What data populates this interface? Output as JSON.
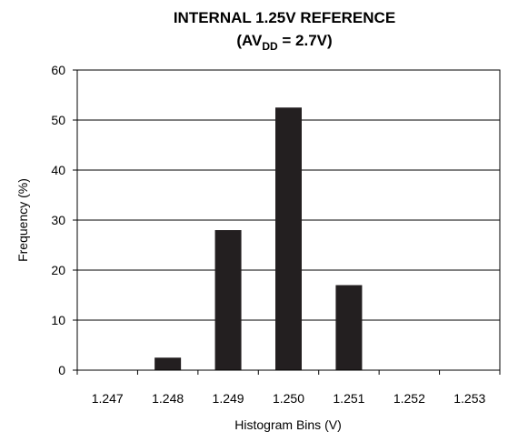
{
  "chart_data": {
    "type": "bar",
    "title": "INTERNAL 1.25V REFERENCE",
    "subtitle": {
      "prefix": "(AV",
      "subscript": "DD",
      "suffix": " = 2.7V)"
    },
    "xlabel": "Histogram Bins (V)",
    "ylabel": "Frequency (%)",
    "categories": [
      "1.247",
      "1.248",
      "1.249",
      "1.250",
      "1.251",
      "1.252",
      "1.253"
    ],
    "values": [
      0,
      2.5,
      28,
      52.5,
      17,
      0,
      0
    ],
    "ylim": [
      0,
      60
    ],
    "yticks": [
      "0",
      "10",
      "20",
      "30",
      "40",
      "50",
      "60"
    ],
    "grid": "horizontal",
    "legend": "none",
    "bar_color": "#231f20"
  }
}
